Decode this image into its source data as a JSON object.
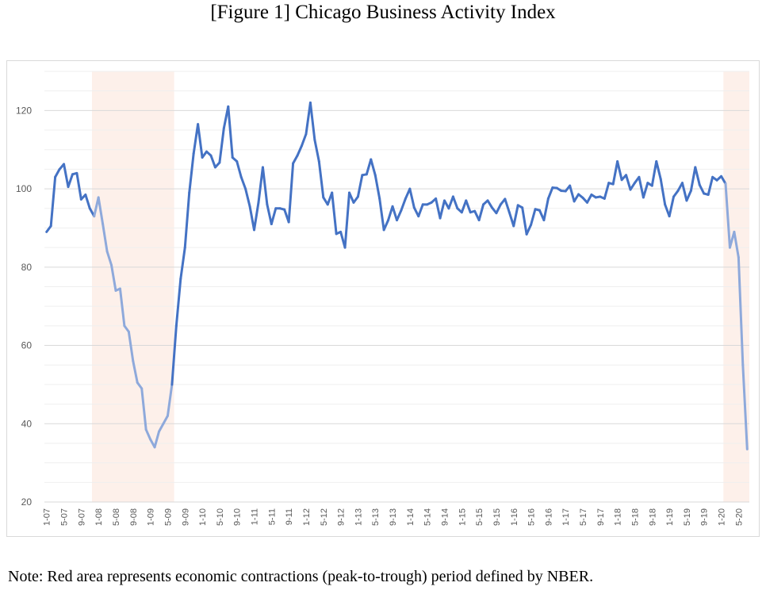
{
  "title": "[Figure 1] Chicago Business Activity Index",
  "note": "Note: Red area represents economic contractions (peak-to-trough) period defined by NBER.",
  "colors": {
    "line": "#4472c4",
    "line_faded": "#8ea9db",
    "recession_fill": "#fdf0ea",
    "grid": "#d9d9d9",
    "tick_text": "#595959"
  },
  "chart_data": {
    "type": "line",
    "title": "[Figure 1] Chicago Business Activity Index",
    "xlabel": "",
    "ylabel": "",
    "ylim": [
      20,
      130
    ],
    "yticks": [
      20,
      40,
      60,
      80,
      100,
      120
    ],
    "grid": true,
    "legend": "none",
    "x_start": "2007-01",
    "x_end": "2020-07",
    "x_tick_labels": [
      "1-07",
      "5-07",
      "9-07",
      "1-08",
      "5-08",
      "9-08",
      "1-09",
      "5-09",
      "9-09",
      "1-10",
      "5-10",
      "9-10",
      "1-11",
      "5-11",
      "9-11",
      "1-12",
      "5-12",
      "9-12",
      "1-13",
      "5-13",
      "9-13",
      "1-14",
      "5-14",
      "9-14",
      "1-15",
      "5-15",
      "9-15",
      "1-16",
      "5-16",
      "9-16",
      "1-17",
      "5-17",
      "9-17",
      "1-18",
      "5-18",
      "9-18",
      "1-19",
      "5-19",
      "9-19",
      "1-20",
      "5-20"
    ],
    "recessions": [
      {
        "start": "2007-12",
        "end": "2009-06"
      },
      {
        "start": "2020-02",
        "end": "2020-07"
      }
    ],
    "series": [
      {
        "values": [
          89,
          90.5,
          103,
          105,
          106.3,
          100.5,
          103.7,
          104,
          97.3,
          98.5,
          95,
          93,
          97.8,
          91,
          84,
          80.5,
          74,
          74.5,
          65,
          63.5,
          56,
          50.5,
          49,
          38.5,
          36,
          34,
          38,
          40,
          42,
          50,
          65,
          77,
          85,
          99,
          109,
          116.5,
          108,
          109.5,
          108.5,
          105.5,
          106.7,
          115.5,
          121,
          108,
          107,
          103,
          100,
          95.5,
          89.5,
          96.5,
          105.5,
          96,
          91,
          95,
          95,
          94.7,
          91.5,
          106.5,
          108.5,
          111,
          114,
          122,
          112.5,
          107,
          97.8,
          96,
          99,
          88.5,
          89,
          85,
          99,
          96.5,
          98,
          103.5,
          103.7,
          107.5,
          103.5,
          97.5,
          89.5,
          92,
          95.5,
          92,
          94.5,
          97.5,
          100,
          95.2,
          93,
          96,
          96,
          96.5,
          97.5,
          92.5,
          97,
          95,
          98,
          95,
          94,
          97,
          94,
          94.3,
          92,
          96,
          97,
          95.2,
          93.8,
          96,
          97.4,
          94,
          90.5,
          95.8,
          95.2,
          88.4,
          90.8,
          94.8,
          94.5,
          92,
          97.5,
          100.3,
          100.2,
          99.5,
          99.4,
          100.8,
          96.8,
          98.6,
          97.7,
          96.5,
          98.5,
          97.8,
          98,
          97.5,
          101.5,
          101.2,
          107,
          102.3,
          103.5,
          99.8,
          101.5,
          103,
          97.8,
          101.5,
          100.8,
          107,
          102.5,
          96,
          93,
          98,
          99.5,
          101.5,
          97,
          99.5,
          105.5,
          101,
          98.8,
          98.5,
          103,
          102.2,
          103.2,
          101.3,
          85,
          89,
          82.5,
          55,
          33.5
        ]
      }
    ]
  }
}
